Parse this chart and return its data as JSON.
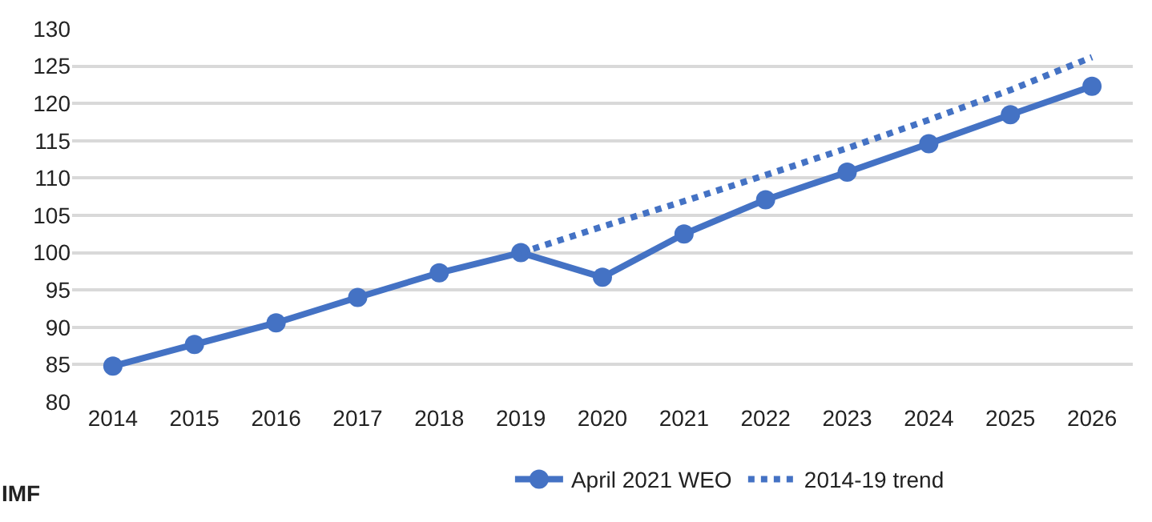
{
  "chart_data": {
    "type": "line",
    "categories": [
      "2014",
      "2015",
      "2016",
      "2017",
      "2018",
      "2019",
      "2020",
      "2021",
      "2022",
      "2023",
      "2024",
      "2025",
      "2026"
    ],
    "series": [
      {
        "name": "April 2021 WEO",
        "color": "#4472c4",
        "marker": "circle",
        "line_style": "solid",
        "values": [
          84.8,
          87.7,
          90.6,
          94.0,
          97.3,
          100.0,
          96.7,
          102.5,
          107.1,
          110.8,
          114.6,
          118.5,
          122.3
        ]
      },
      {
        "name": "2014-19 trend",
        "color": "#4472c4",
        "marker": "none",
        "line_style": "dotted",
        "values": [
          null,
          null,
          null,
          null,
          null,
          100.0,
          103.5,
          106.9,
          110.4,
          114.0,
          117.8,
          121.8,
          126.2
        ]
      }
    ],
    "ylim": [
      80,
      130
    ],
    "yticks": [
      80,
      85,
      90,
      95,
      100,
      105,
      110,
      115,
      120,
      125,
      130
    ],
    "grid": "y",
    "legend": "bottom",
    "annotations": [
      "IMF"
    ]
  }
}
